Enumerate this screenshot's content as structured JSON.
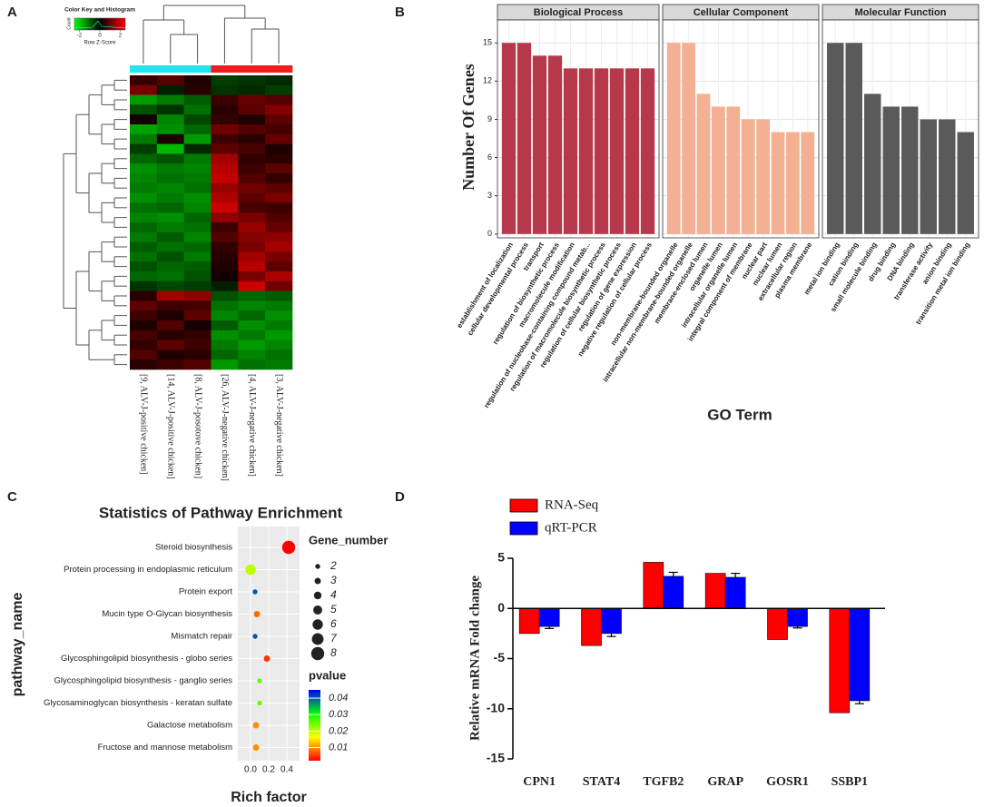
{
  "chart_data": [
    {
      "label": "A",
      "type": "heatmap",
      "key_title": "Color Key and Histogram",
      "key_xlabel": "Row Z-Score",
      "key_ylabel": "Count",
      "key_ticks": [
        -2,
        0,
        2
      ],
      "zlim": [
        -2.5,
        2.5
      ],
      "colors": [
        "#00ff00",
        "#000000",
        "#ff0000"
      ],
      "columns": [
        "[9, ALV-J-positive chicken]",
        "[14, ALV-J-positive chicken]",
        "[8, ALV-J-posotove chicken]",
        "[26, ALV-J-negative chicken]",
        "[4, ALV-J-negative chicken]",
        "[3, ALV-J-negative chicken]"
      ],
      "group_colors": [
        "#22e4f2",
        "#22e4f2",
        "#22e4f2",
        "#f21c1c",
        "#f21c1c",
        "#f21c1c"
      ],
      "z": [
        [
          0.5,
          0.8,
          0.3,
          -0.6,
          -0.5,
          -0.4
        ],
        [
          1.2,
          -0.3,
          0.4,
          -0.5,
          -0.4,
          -0.6
        ],
        [
          -1.5,
          -1.2,
          -0.9,
          0.6,
          1.0,
          0.8
        ],
        [
          -0.8,
          -0.5,
          -1.1,
          0.4,
          0.9,
          1.3
        ],
        [
          0.2,
          -1.3,
          -0.7,
          0.5,
          0.3,
          0.9
        ],
        [
          -1.6,
          -1.4,
          -1.0,
          1.1,
          0.8,
          0.7
        ],
        [
          -1.2,
          0.3,
          -1.5,
          0.6,
          0.4,
          1.0
        ],
        [
          -0.6,
          -1.8,
          -0.4,
          0.9,
          0.7,
          0.3
        ],
        [
          -1.0,
          -0.8,
          -1.2,
          1.6,
          0.5,
          0.4
        ],
        [
          -1.4,
          -1.2,
          -1.3,
          1.8,
          0.6,
          0.9
        ],
        [
          -1.3,
          -1.1,
          -1.2,
          1.9,
          0.8,
          0.5
        ],
        [
          -1.2,
          -1.3,
          -1.1,
          1.5,
          1.1,
          0.9
        ],
        [
          -1.4,
          -1.2,
          -1.4,
          1.7,
          0.9,
          1.2
        ],
        [
          -1.1,
          -1.0,
          -1.3,
          2.0,
          0.7,
          0.6
        ],
        [
          -1.3,
          -1.4,
          -1.0,
          1.4,
          1.2,
          0.8
        ],
        [
          -1.0,
          -1.2,
          -1.1,
          0.6,
          1.5,
          1.0
        ],
        [
          -1.2,
          -0.9,
          -1.3,
          0.8,
          1.3,
          1.4
        ],
        [
          -0.9,
          -1.1,
          -1.0,
          0.5,
          1.2,
          1.6
        ],
        [
          -1.1,
          -0.8,
          -1.2,
          0.4,
          1.6,
          1.2
        ],
        [
          -0.8,
          -1.0,
          -0.9,
          0.3,
          1.8,
          0.9
        ],
        [
          -1.0,
          -1.1,
          -0.8,
          0.2,
          1.2,
          1.7
        ],
        [
          -0.5,
          -0.7,
          -0.6,
          -0.3,
          2.0,
          1.1
        ],
        [
          0.4,
          1.6,
          1.4,
          -0.8,
          -1.0,
          -0.9
        ],
        [
          0.9,
          0.6,
          0.7,
          -1.1,
          -1.3,
          -1.2
        ],
        [
          0.6,
          0.3,
          0.9,
          -1.3,
          -1.0,
          -1.4
        ],
        [
          0.3,
          0.8,
          0.2,
          -0.9,
          -1.4,
          -1.2
        ],
        [
          0.7,
          0.4,
          0.5,
          -1.4,
          -1.2,
          -1.5
        ],
        [
          0.5,
          0.9,
          0.6,
          -1.2,
          -1.5,
          -1.3
        ],
        [
          0.8,
          0.3,
          0.4,
          -1.0,
          -1.3,
          -1.1
        ],
        [
          0.4,
          0.6,
          0.8,
          -1.5,
          -1.1,
          -1.2
        ]
      ]
    },
    {
      "label": "B",
      "type": "faceted_bar",
      "ylabel": "Number Of Genes",
      "xlabel": "GO Term",
      "ylim": [
        -0.3,
        16.8
      ],
      "yticks": [
        0,
        3,
        6,
        9,
        12,
        15
      ],
      "grid": true,
      "facets": [
        {
          "name": "Biological Process",
          "color": "#b5384b",
          "categories": [
            "establishment of localization",
            "cellular developmental process",
            "transport",
            "regulation of biosynthetic process",
            "macromolecule modification",
            "regulation of nucleobase-containing compound metab...",
            "regulation of macromolecule biosynthetic process",
            "regulation of cellular biosynthetic process",
            "regulation of gene expression",
            "negative regulation of cellular process"
          ],
          "values": [
            15,
            15,
            14,
            14,
            13,
            13,
            13,
            13,
            13,
            13
          ]
        },
        {
          "name": "Cellular Component",
          "color": "#f4b092",
          "categories": [
            "non-membrane-bounded organelle",
            "intracellular non-membrane-bounded organelle",
            "membrane-enclosed lumen",
            "organelle lumen",
            "intracellular organelle lumen",
            "integral component of membrane",
            "nuclear part",
            "nuclear lumen",
            "extracellular region",
            "plasma membrane"
          ],
          "values": [
            15,
            15,
            11,
            10,
            10,
            9,
            9,
            8,
            8,
            8
          ]
        },
        {
          "name": "Molecular Function",
          "color": "#5a5a5a",
          "categories": [
            "metal ion binding",
            "cation binding",
            "small molecule binding",
            "drug binding",
            "DNA binding",
            "transferase activity",
            "anion binding",
            "transition metal ion binding"
          ],
          "values": [
            15,
            15,
            11,
            10,
            10,
            9,
            9,
            8
          ]
        }
      ]
    },
    {
      "label": "C",
      "type": "dot",
      "title": "Statistics of Pathway Enrichment",
      "ylabel": "pathway_name",
      "xlabel": "Rich factor",
      "xlim": [
        -0.14,
        0.54
      ],
      "xticks": [
        {
          "value": 0,
          "label": "0.0"
        },
        0.2,
        0.4
      ],
      "grid": true,
      "categories": [
        "Steroid biosynthesis",
        "Protein processing in endoplasmic reticulum",
        "Protein export",
        "Mucin type O-Glycan biosynthesis",
        "Mismatch repair",
        "Glycosphingolipid biosynthesis - globo series",
        "Glycosphingolipid biosynthesis - ganglio series",
        "Glycosaminoglycan biosynthesis - keratan sulfate",
        "Galactose metabolism",
        "Fructose and mannose metabolism"
      ],
      "x": [
        0.42,
        0.0,
        0.05,
        0.07,
        0.05,
        0.18,
        0.1,
        0.1,
        0.06,
        0.06
      ],
      "size": [
        8,
        6,
        2,
        3,
        2,
        3,
        2,
        2,
        3,
        3
      ],
      "pvalue": [
        0.002,
        0.02,
        0.04,
        0.008,
        0.04,
        0.005,
        0.025,
        0.025,
        0.01,
        0.01
      ],
      "size_title": "Gene_number",
      "size_legend": [
        2,
        3,
        4,
        5,
        6,
        7,
        8
      ],
      "color_title": "pvalue",
      "color_ticks": [
        0.04,
        0.03,
        0.02,
        0.01
      ],
      "color_lim": [
        0.002,
        0.045
      ],
      "colormap": [
        "#ff0000",
        "#ffff00",
        "#00ff00",
        "#0000ff"
      ]
    },
    {
      "label": "D",
      "type": "bar",
      "ylabel": "Relative mRNA Fold change",
      "ylim": [
        -15,
        5
      ],
      "yticks": [
        -15,
        -10,
        -5,
        0,
        5
      ],
      "categories": [
        "CPN1",
        "STAT4",
        "TGFB2",
        "GRAP",
        "GOSR1",
        "SSBP1"
      ],
      "series": [
        {
          "name": "RNA-Seq",
          "color": "#ff0000",
          "values": [
            -2.5,
            -3.7,
            4.6,
            3.5,
            -3.1,
            -10.4
          ]
        },
        {
          "name": "qRT-PCR",
          "color": "#0000ff",
          "values": [
            -1.8,
            -2.5,
            3.2,
            3.1,
            -1.8,
            -9.2
          ],
          "errors": [
            0.2,
            0.3,
            0.4,
            0.4,
            0.15,
            0.3
          ]
        }
      ]
    }
  ]
}
